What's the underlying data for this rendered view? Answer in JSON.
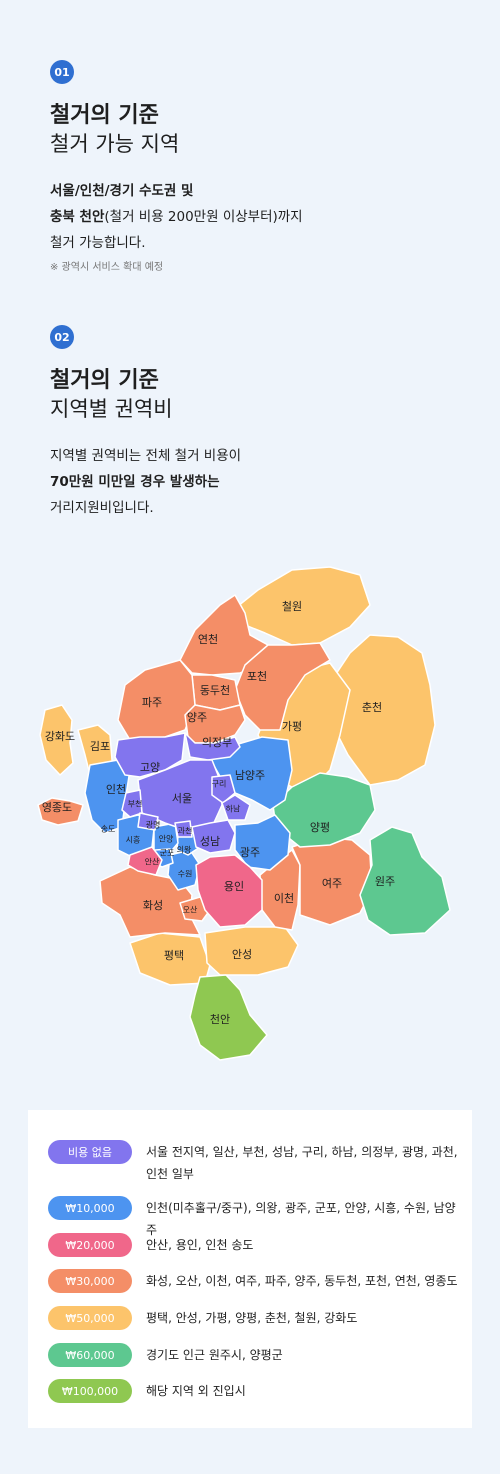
{
  "section1": {
    "number": "01",
    "title_bold": "철거의 기준",
    "title_light": "철거 가능 지역",
    "line1": "서울/인천/경기 수도권 및",
    "line2_bold": "충북 천안",
    "line2_rest": "(철거 비용 200만원 이상부터)까지",
    "line3": "철거 가능합니다.",
    "note": "※ 광역시 서비스 확대 예정"
  },
  "section2": {
    "number": "02",
    "title_bold": "철거의 기준",
    "title_light": "지역별 권역비",
    "line1": "지역별 권역비는 전체 철거 비용이",
    "line2": "70만원 미만일 경우 발생하는",
    "line3": "거리지원비입니다."
  },
  "colors": {
    "free": "#8275ee",
    "w10000": "#4d94f0",
    "w20000": "#f0678a",
    "w30000": "#f48e67",
    "w50000": "#fcc46b",
    "w60000": "#5dc890",
    "w100000": "#8fc851"
  },
  "map": {
    "regions": [
      {
        "name": "철원"
      },
      {
        "name": "연천"
      },
      {
        "name": "포천"
      },
      {
        "name": "동두천"
      },
      {
        "name": "파주"
      },
      {
        "name": "양주"
      },
      {
        "name": "춘천"
      },
      {
        "name": "가평"
      },
      {
        "name": "강화도"
      },
      {
        "name": "김포"
      },
      {
        "name": "의정부"
      },
      {
        "name": "고양"
      },
      {
        "name": "남양주"
      },
      {
        "name": "인천"
      },
      {
        "name": "서울"
      },
      {
        "name": "구리"
      },
      {
        "name": "영종도"
      },
      {
        "name": "부천"
      },
      {
        "name": "하남"
      },
      {
        "name": "양평"
      },
      {
        "name": "송도"
      },
      {
        "name": "광명"
      },
      {
        "name": "과천"
      },
      {
        "name": "시흥"
      },
      {
        "name": "안양"
      },
      {
        "name": "성남"
      },
      {
        "name": "군포"
      },
      {
        "name": "의왕"
      },
      {
        "name": "광주"
      },
      {
        "name": "안산"
      },
      {
        "name": "원주"
      },
      {
        "name": "수원"
      },
      {
        "name": "여주"
      },
      {
        "name": "용인"
      },
      {
        "name": "이천"
      },
      {
        "name": "화성"
      },
      {
        "name": "오산"
      },
      {
        "name": "평택"
      },
      {
        "name": "안성"
      },
      {
        "name": "천안"
      }
    ]
  },
  "legend": [
    {
      "label": "비용 없음",
      "text": "서울 전지역, 일산, 부천, 성남, 구리, 하남, 의정부, 광명, 과천, 인천 일부"
    },
    {
      "label": "₩10,000",
      "text": "인천(미추홀구/중구), 의왕, 광주, 군포, 안양, 시흥, 수원, 남양주"
    },
    {
      "label": "₩20,000",
      "text": "안산, 용인, 인천 송도"
    },
    {
      "label": "₩30,000",
      "text": "화성, 오산, 이천, 여주, 파주, 양주, 동두천, 포천, 연천, 영종도"
    },
    {
      "label": "₩50,000",
      "text": "평택, 안성, 가평, 양평, 춘천, 철원, 강화도"
    },
    {
      "label": "₩60,000",
      "text": "경기도 인근 원주시, 양평군"
    },
    {
      "label": "₩100,000",
      "text": "해당 지역 외 진입시"
    }
  ]
}
